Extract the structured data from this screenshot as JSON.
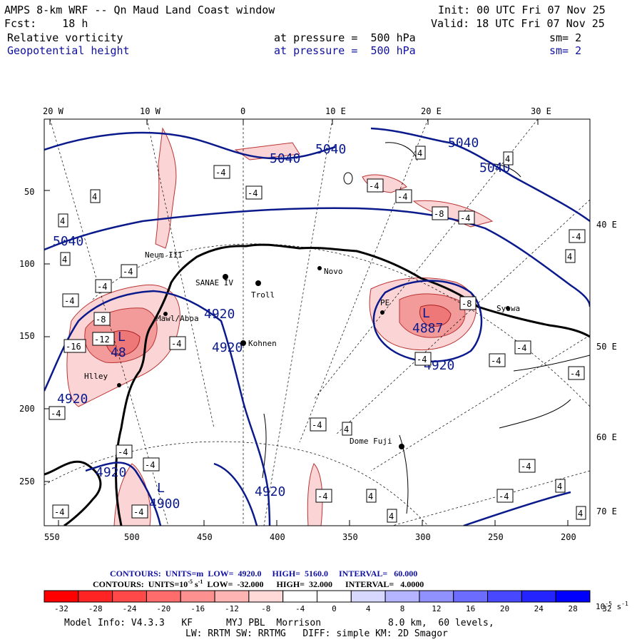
{
  "header": {
    "title": "AMPS 8-km WRF -- Qn Maud Land Coast window",
    "init": "Init: 00 UTC Fri 07 Nov 25",
    "fcst": "Fcst:    18 h",
    "valid": "Valid: 18 UTC Fri 07 Nov 25",
    "field1": {
      "name": "Relative vorticity",
      "level": "at pressure =  500 hPa",
      "sm": "sm= 2"
    },
    "field2": {
      "name": "Geopotential height",
      "level": "at pressure =  500 hPa",
      "sm": "sm= 2"
    }
  },
  "map": {
    "top_lon_labels": [
      "20 W",
      "10 W",
      "0",
      "10 E",
      "20 E",
      "30 E"
    ],
    "right_lon_labels": [
      "40 E",
      "50 E",
      "60 E",
      "70 E"
    ],
    "left_y_ticks": [
      "50",
      "100",
      "150",
      "200",
      "250"
    ],
    "bottom_x_ticks": [
      "550",
      "500",
      "450",
      "400",
      "350",
      "300",
      "250",
      "200"
    ],
    "stations": [
      "Neum III",
      "SANAE IV",
      "Troll",
      "Novo",
      "Kohnen",
      "Dome Fuji",
      "Syowa",
      "Hlley",
      "Mawl/Aboa",
      "PE"
    ],
    "height_labels": [
      "5040",
      "5040",
      "5040",
      "5040",
      "5040",
      "4920",
      "4920",
      "4920",
      "4920",
      "4920",
      "4920",
      "4887",
      "4900",
      "48"
    ],
    "vort_boxes": [
      "4",
      "-4",
      "-8",
      "-12",
      "-16"
    ],
    "low_marker": "L",
    "colors": {
      "height": "#0a1a8c",
      "coast": "#000000",
      "neg_fill": "#f7c8c8"
    }
  },
  "contours_line1": {
    "prefix": "CONTOURS:  UNITS=m",
    "low": "LOW=  4920.0",
    "high": "HIGH=  5160.0",
    "interval": "INTERVAL=   60.000"
  },
  "contours_line2": {
    "prefix": "CONTOURS:  UNITS=10",
    "exp": "-5",
    "suffix": " s",
    "exp2": "-1",
    "low": "LOW=  -32.000",
    "high": "HIGH=  32.000",
    "interval": "INTERVAL=   4.0000"
  },
  "colorbar": {
    "labels": [
      "-32",
      "-28",
      "-24",
      "-20",
      "-16",
      "-12",
      "-8",
      "-4",
      "0",
      "4",
      "8",
      "12",
      "16",
      "20",
      "24",
      "28",
      "32"
    ],
    "units": "10",
    "units_exp": "-5",
    "units_s": " s",
    "units_exp2": "-1",
    "colors": [
      "#ff0000",
      "#ff2424",
      "#ff4848",
      "#ff6c6c",
      "#ff9090",
      "#ffb4b4",
      "#ffd8d8",
      "#ffffff",
      "#ffffff",
      "#d8d8ff",
      "#b4b4ff",
      "#9090ff",
      "#6c6cff",
      "#4848ff",
      "#2424ff",
      "#0000ff"
    ]
  },
  "footer": {
    "line1": "Model Info: V4.3.3   KF      MYJ PBL  Morrison            8.0 km,  60 levels,",
    "line2": "LW: RRTM SW: RRTMG   DIFF: simple KM: 2D Smagor"
  }
}
